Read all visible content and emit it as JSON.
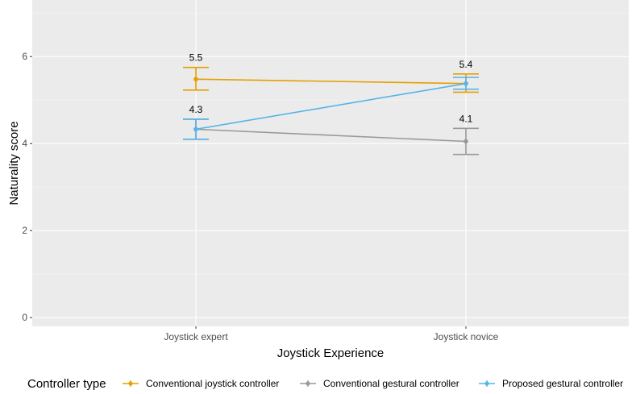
{
  "chart_data": {
    "type": "line",
    "xlabel": "Joystick Experience",
    "ylabel": "Naturality score",
    "categories": [
      "Joystick expert",
      "Joystick novice"
    ],
    "ylim": [
      -0.2,
      7.3
    ],
    "yticks": [
      0,
      2,
      4,
      6
    ],
    "grid": true,
    "legend_position": "bottom",
    "legend_title": "Controller type",
    "series": [
      {
        "name": "Conventional joystick controller",
        "color": "#E69F00",
        "values": [
          5.48,
          5.38
        ],
        "error_low": [
          5.23,
          5.18
        ],
        "error_high": [
          5.75,
          5.6
        ]
      },
      {
        "name": "Conventional gestural controller",
        "color": "#999999",
        "values": [
          4.33,
          4.05
        ],
        "error_low": [
          4.1,
          3.75
        ],
        "error_high": [
          4.56,
          4.35
        ]
      },
      {
        "name": "Proposed gestural controller",
        "color": "#56B4E9",
        "values": [
          4.33,
          5.38
        ],
        "error_low": [
          4.1,
          5.25
        ],
        "error_high": [
          4.56,
          5.52
        ]
      }
    ],
    "annotations": [
      {
        "text": "5.5",
        "category": 0,
        "y": 5.75
      },
      {
        "text": "4.3",
        "category": 0,
        "y": 4.56
      },
      {
        "text": "5.4",
        "category": 1,
        "y": 5.6
      },
      {
        "text": "4.1",
        "category": 1,
        "y": 4.35
      }
    ]
  }
}
